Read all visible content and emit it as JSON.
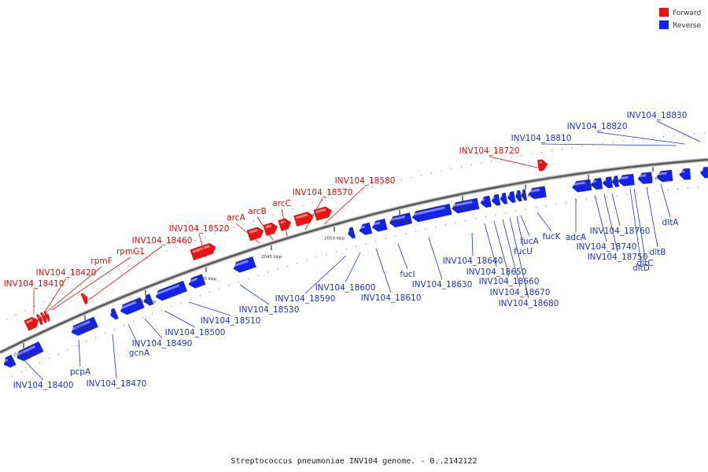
{
  "caption": "Streptococcus pneumoniae INV104 genome. - 0..2142122",
  "legend": [
    {
      "label": "Forward",
      "color": "#ee1111"
    },
    {
      "label": "Reverse",
      "color": "#1122ee"
    }
  ],
  "colors": {
    "forward": "#ee1111",
    "reverse": "#1122ee",
    "backbone": "#555555"
  },
  "tick_labels": [
    "2025 kbp",
    "2030 kbp",
    "2035 kbp",
    "2040 kbp",
    "2045 kbp",
    "2050 kbp",
    "2055 kbp",
    "2060 kbp",
    "2065 kbp",
    "2070 kbp",
    "2075 kbp"
  ],
  "forward_labels": [
    "INV104_18410",
    "INV104_18420",
    "rpmF",
    "rpmG1",
    "INV104_18460",
    "INV104_18520",
    "arcA",
    "arcB",
    "arcC",
    "INV104_18570",
    "INV104_18580",
    "INV104_18720"
  ],
  "reverse_labels": [
    "INV104_18400",
    "pcpA",
    "INV104_18470",
    "gcnA",
    "INV104_18490",
    "INV104_18500",
    "INV104_18510",
    "INV104_18530",
    "INV104_18590",
    "INV104_18600",
    "INV104_18610",
    "fucI",
    "INV104_18630",
    "INV104_18640",
    "INV104_18650",
    "INV104_18660",
    "INV104_18670",
    "INV104_18680",
    "fucU",
    "fucA",
    "fucK",
    "adcA",
    "INV104_18740",
    "INV104_18750",
    "INV104_18760",
    "dltD",
    "dltC",
    "dltB",
    "dltA",
    "INV104_18810",
    "INV104_18820",
    "INV104_18830"
  ]
}
